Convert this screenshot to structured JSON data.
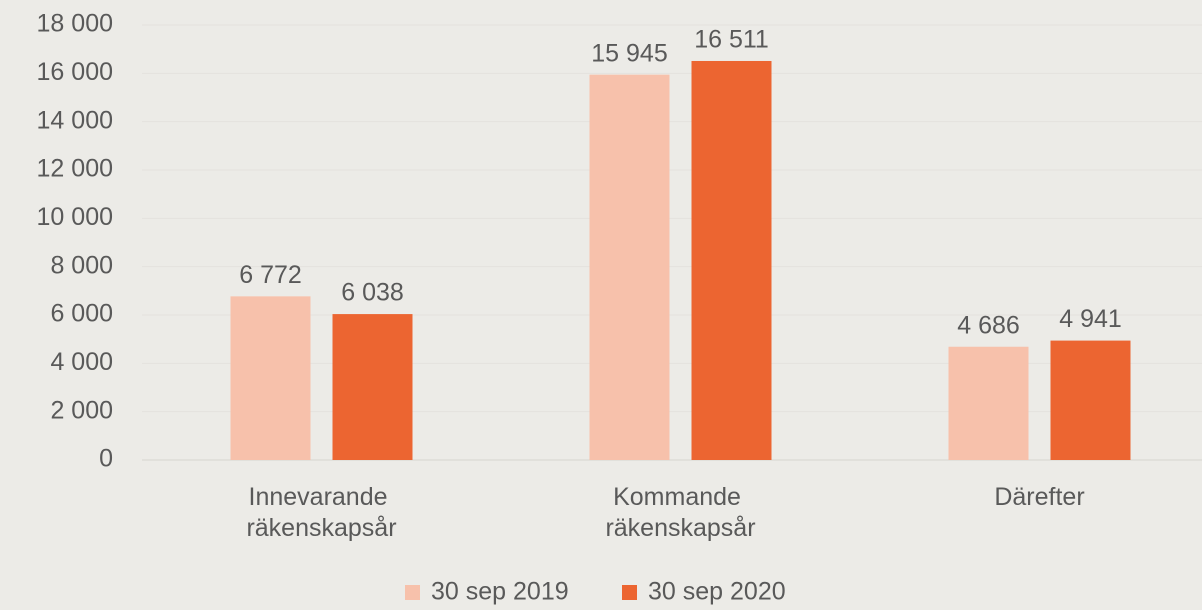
{
  "chart_data": {
    "type": "bar",
    "categories": [
      "Innevarande räkenskapsår",
      "Kommande räkenskapsår",
      "Därefter"
    ],
    "series": [
      {
        "name": "30 sep 2019",
        "color": "#f7c1ab",
        "values": [
          6772,
          15945,
          4686
        ],
        "value_labels": [
          "6 772",
          "15 945",
          "4 686"
        ]
      },
      {
        "name": "30 sep 2020",
        "color": "#ec6531",
        "values": [
          6038,
          16511,
          4941
        ],
        "value_labels": [
          "6 038",
          "16 511",
          "4 941"
        ]
      }
    ],
    "ylim": [
      0,
      18000
    ],
    "yticks": [
      0,
      {
        "value": 2000,
        "label": "2 000"
      },
      {
        "value": 4000,
        "label": "4 000"
      },
      {
        "value": 6000,
        "label": "6 000"
      },
      {
        "value": 8000,
        "label": "8 000"
      },
      {
        "value": 10000,
        "label": "10 000"
      },
      {
        "value": 12000,
        "label": "12 000"
      },
      {
        "value": 14000,
        "label": "14 000"
      },
      {
        "value": 16000,
        "label": "16 000"
      },
      {
        "value": 18000,
        "label": "18 000"
      }
    ],
    "grid": true,
    "legend": "bottom"
  }
}
